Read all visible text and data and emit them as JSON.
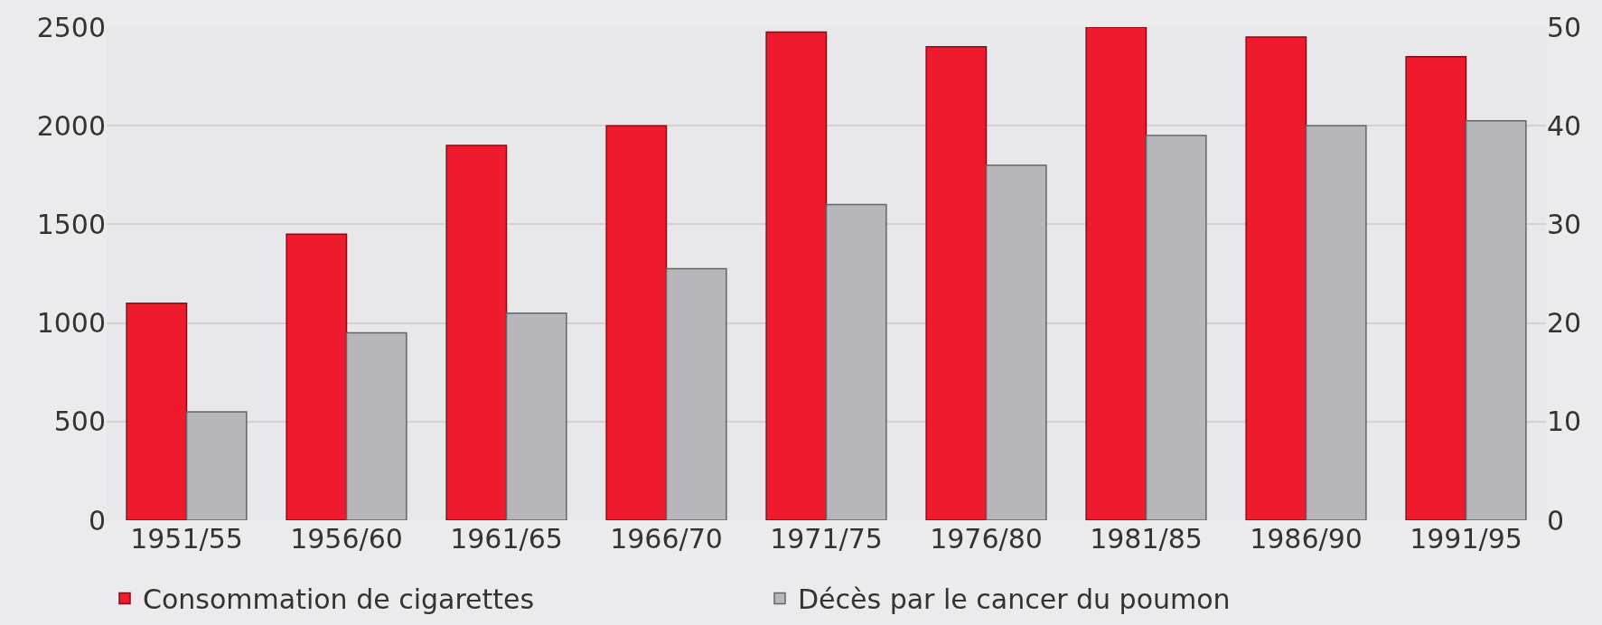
{
  "chart_data": {
    "type": "bar",
    "categories": [
      "1951/55",
      "1956/60",
      "1961/65",
      "1966/70",
      "1971/75",
      "1976/80",
      "1981/85",
      "1986/90",
      "1991/95"
    ],
    "series": [
      {
        "name": "Consommation de cigarettes",
        "color": "#ef1a2d",
        "values": [
          1100,
          1450,
          1900,
          2000,
          2475,
          2400,
          2500,
          2450,
          2350
        ]
      },
      {
        "name": "Décès par le cancer du poumon",
        "color": "#b7b7bb",
        "axis": "y2",
        "values": [
          11,
          19,
          21,
          25.5,
          32,
          36,
          39,
          40,
          40.5
        ]
      }
    ],
    "ylim": [
      0,
      2500
    ],
    "yticks": [
      0,
      500,
      1000,
      1500,
      2000,
      2500
    ],
    "y2lim": [
      0,
      50
    ],
    "y2ticks": [
      0,
      10,
      20,
      30,
      40,
      50
    ],
    "grid": "y",
    "legend": "bottom"
  }
}
